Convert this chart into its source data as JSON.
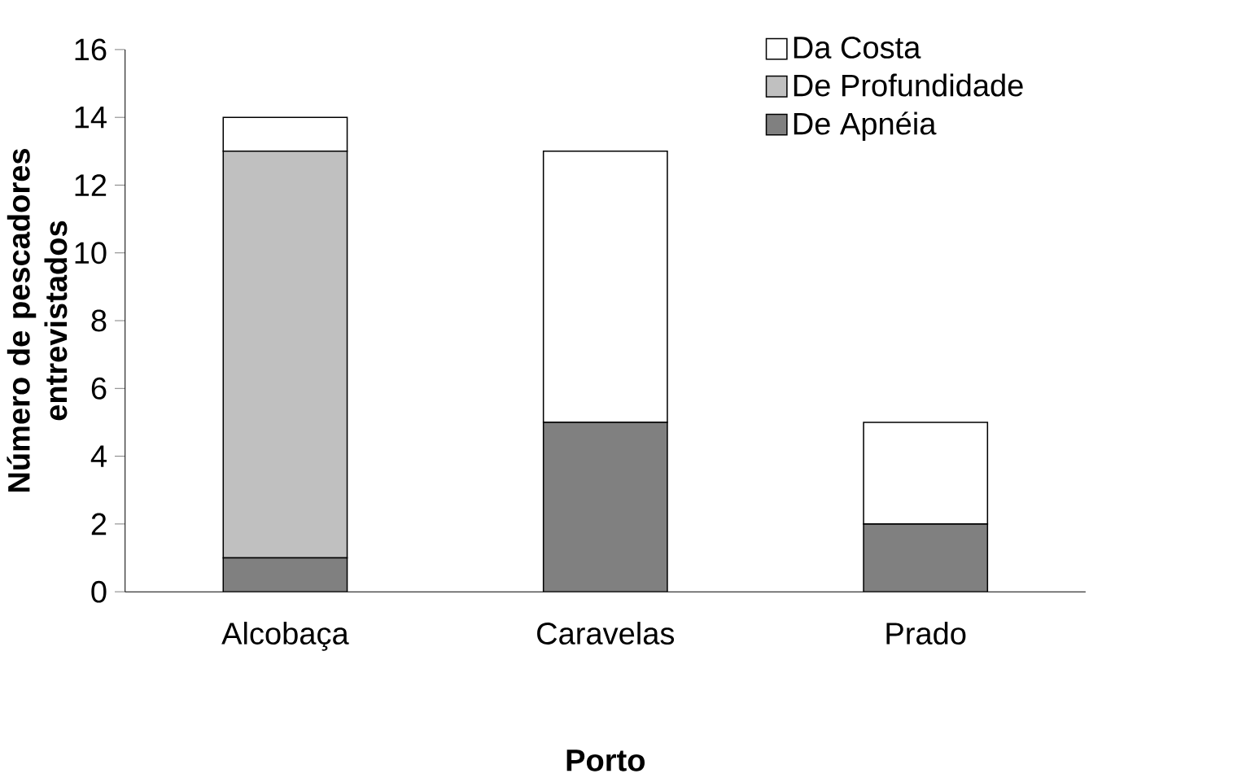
{
  "chart_data": {
    "type": "bar",
    "stacked": true,
    "xlabel": "Porto",
    "ylabel": "Número de pescadores entrevistados",
    "categories": [
      "Alcobaça",
      "Caravelas",
      "Prado"
    ],
    "series": [
      {
        "name": "De Apnéia",
        "color": "#808080",
        "values": [
          1,
          5,
          2
        ]
      },
      {
        "name": "De Profundidade",
        "color": "#c0c0c0",
        "values": [
          12,
          0,
          0
        ]
      },
      {
        "name": "Da Costa",
        "color": "#ffffff",
        "values": [
          1,
          8,
          3
        ]
      }
    ],
    "ylim": [
      0,
      16
    ],
    "yticks": [
      0,
      2,
      4,
      6,
      8,
      10,
      12,
      14,
      16
    ],
    "legend": "top right",
    "grid": false
  }
}
